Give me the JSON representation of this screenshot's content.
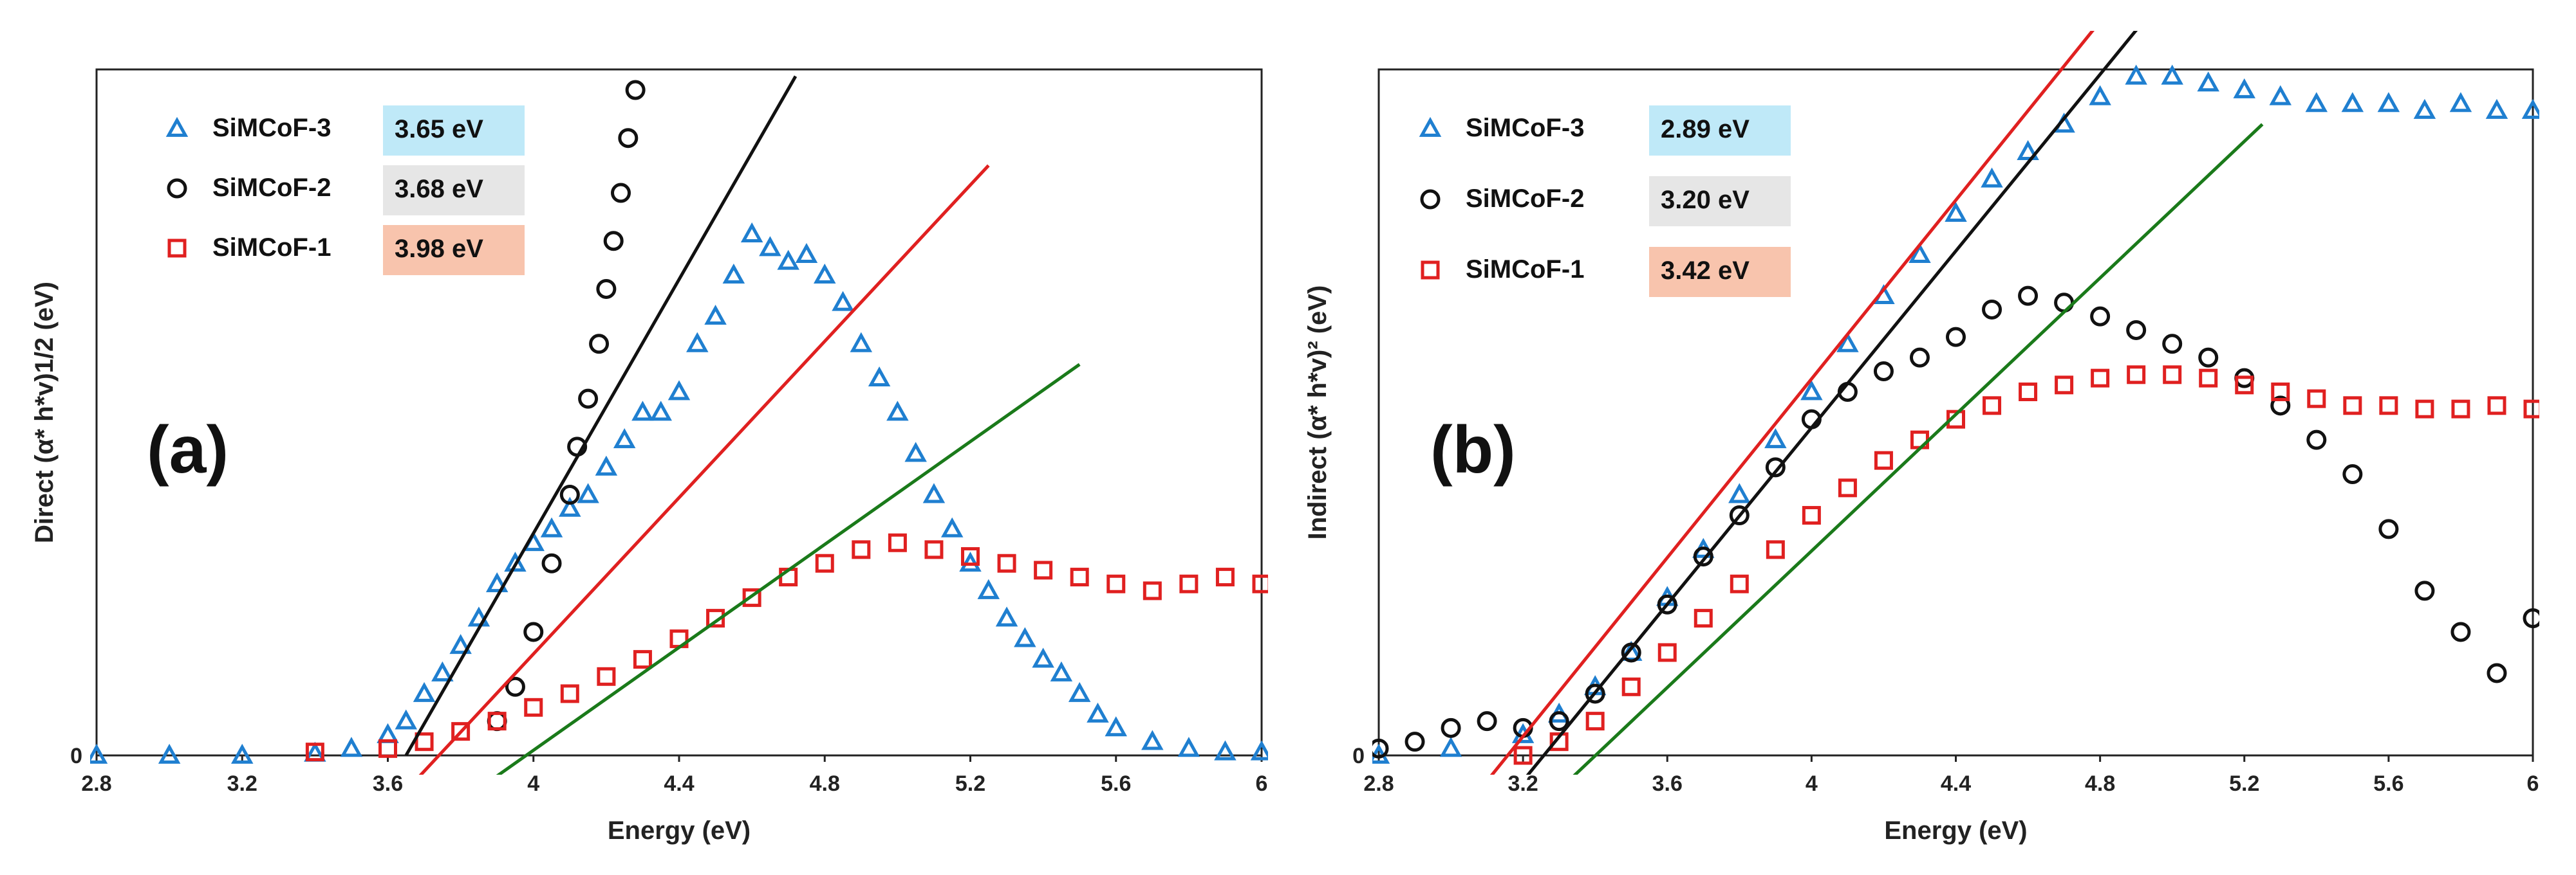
{
  "chart_data": [
    {
      "type": "scatter",
      "panel_label": "(a)",
      "xlabel": "Energy (eV)",
      "ylabel": "Direct (α* h*v)1/2  (eV)",
      "xlim": [
        2.8,
        6.0
      ],
      "ylim": [
        0,
        1.0
      ],
      "x_ticks": [
        "2.8",
        "3.2",
        "3.6",
        "4",
        "4.4",
        "4.8",
        "5.2",
        "5.6",
        "6"
      ],
      "y_tick_label": "0",
      "legend": [
        {
          "name": "SiMCoF-3",
          "marker": "triangle",
          "color": "#1f7fd0",
          "badge": "3.65 eV",
          "badge_color": "#bfe9f8"
        },
        {
          "name": "SiMCoF-2",
          "marker": "circle",
          "color": "#111111",
          "badge": "3.68 eV",
          "badge_color": "#e6e6e6"
        },
        {
          "name": "SiMCoF-1",
          "marker": "square",
          "color": "#e02020",
          "badge": "3.98 eV",
          "badge_color": "#f8c4ad"
        }
      ],
      "series": [
        {
          "name": "SiMCoF-3",
          "marker": "triangle",
          "color": "#1f7fd0",
          "points": [
            [
              2.8,
              0.0
            ],
            [
              3.0,
              0.0
            ],
            [
              3.2,
              0.0
            ],
            [
              3.4,
              0.003
            ],
            [
              3.5,
              0.01
            ],
            [
              3.6,
              0.03
            ],
            [
              3.65,
              0.05
            ],
            [
              3.7,
              0.09
            ],
            [
              3.75,
              0.12
            ],
            [
              3.8,
              0.16
            ],
            [
              3.85,
              0.2
            ],
            [
              3.9,
              0.25
            ],
            [
              3.95,
              0.28
            ],
            [
              4.0,
              0.31
            ],
            [
              4.05,
              0.33
            ],
            [
              4.1,
              0.36
            ],
            [
              4.15,
              0.38
            ],
            [
              4.2,
              0.42
            ],
            [
              4.25,
              0.46
            ],
            [
              4.3,
              0.5
            ],
            [
              4.35,
              0.5
            ],
            [
              4.4,
              0.53
            ],
            [
              4.45,
              0.6
            ],
            [
              4.5,
              0.64
            ],
            [
              4.55,
              0.7
            ],
            [
              4.6,
              0.76
            ],
            [
              4.65,
              0.74
            ],
            [
              4.7,
              0.72
            ],
            [
              4.75,
              0.73
            ],
            [
              4.8,
              0.7
            ],
            [
              4.85,
              0.66
            ],
            [
              4.9,
              0.6
            ],
            [
              4.95,
              0.55
            ],
            [
              5.0,
              0.5
            ],
            [
              5.05,
              0.44
            ],
            [
              5.1,
              0.38
            ],
            [
              5.15,
              0.33
            ],
            [
              5.2,
              0.28
            ],
            [
              5.25,
              0.24
            ],
            [
              5.3,
              0.2
            ],
            [
              5.35,
              0.17
            ],
            [
              5.4,
              0.14
            ],
            [
              5.45,
              0.12
            ],
            [
              5.5,
              0.09
            ],
            [
              5.55,
              0.06
            ],
            [
              5.6,
              0.04
            ],
            [
              5.7,
              0.02
            ],
            [
              5.8,
              0.01
            ],
            [
              5.9,
              0.005
            ],
            [
              6.0,
              0.005
            ]
          ]
        },
        {
          "name": "SiMCoF-2",
          "marker": "circle",
          "color": "#111111",
          "points": [
            [
              3.9,
              0.05
            ],
            [
              3.95,
              0.1
            ],
            [
              4.0,
              0.18
            ],
            [
              4.05,
              0.28
            ],
            [
              4.1,
              0.38
            ],
            [
              4.12,
              0.45
            ],
            [
              4.15,
              0.52
            ],
            [
              4.18,
              0.6
            ],
            [
              4.2,
              0.68
            ],
            [
              4.22,
              0.75
            ],
            [
              4.24,
              0.82
            ],
            [
              4.26,
              0.9
            ],
            [
              4.28,
              0.97
            ]
          ]
        },
        {
          "name": "SiMCoF-1",
          "marker": "square",
          "color": "#e02020",
          "points": [
            [
              3.4,
              0.005
            ],
            [
              3.6,
              0.01
            ],
            [
              3.7,
              0.02
            ],
            [
              3.8,
              0.035
            ],
            [
              3.9,
              0.05
            ],
            [
              4.0,
              0.07
            ],
            [
              4.1,
              0.09
            ],
            [
              4.2,
              0.115
            ],
            [
              4.3,
              0.14
            ],
            [
              4.4,
              0.17
            ],
            [
              4.5,
              0.2
            ],
            [
              4.6,
              0.23
            ],
            [
              4.7,
              0.26
            ],
            [
              4.8,
              0.28
            ],
            [
              4.9,
              0.3
            ],
            [
              5.0,
              0.31
            ],
            [
              5.1,
              0.3
            ],
            [
              5.2,
              0.29
            ],
            [
              5.3,
              0.28
            ],
            [
              5.4,
              0.27
            ],
            [
              5.5,
              0.26
            ],
            [
              5.6,
              0.25
            ],
            [
              5.7,
              0.24
            ],
            [
              5.8,
              0.25
            ],
            [
              5.9,
              0.26
            ],
            [
              6.0,
              0.25
            ]
          ]
        }
      ],
      "fit_lines": [
        {
          "color": "#111111",
          "from": [
            3.65,
            0.0
          ],
          "to": [
            4.72,
            0.99
          ]
        },
        {
          "color": "#e02020",
          "from": [
            3.6,
            -0.08
          ],
          "to": [
            5.25,
            0.86
          ]
        },
        {
          "color": "#1a7a1a",
          "from": [
            3.82,
            -0.06
          ],
          "to": [
            5.5,
            0.57
          ]
        }
      ]
    },
    {
      "type": "scatter",
      "panel_label": "(b)",
      "xlabel": "Energy (eV)",
      "ylabel": "Indirect (α* h*v)² (eV)",
      "xlim": [
        2.8,
        6.0
      ],
      "ylim": [
        0,
        1.0
      ],
      "x_ticks": [
        "2.8",
        "3.2",
        "3.6",
        "4",
        "4.4",
        "4.8",
        "5.2",
        "5.6",
        "6"
      ],
      "y_tick_label": "0",
      "legend": [
        {
          "name": "SiMCoF-3",
          "marker": "triangle",
          "color": "#1f7fd0",
          "badge": "2.89 eV",
          "badge_color": "#bfe9f8"
        },
        {
          "name": "SiMCoF-2",
          "marker": "circle",
          "color": "#111111",
          "badge": "3.20 eV",
          "badge_color": "#e6e6e6"
        },
        {
          "name": "SiMCoF-1",
          "marker": "square",
          "color": "#e02020",
          "badge": "3.42 eV",
          "badge_color": "#f8c4ad"
        }
      ],
      "series": [
        {
          "name": "SiMCoF-3",
          "marker": "triangle",
          "color": "#1f7fd0",
          "points": [
            [
              2.8,
              0.0
            ],
            [
              3.0,
              0.01
            ],
            [
              3.2,
              0.03
            ],
            [
              3.3,
              0.06
            ],
            [
              3.4,
              0.1
            ],
            [
              3.5,
              0.15
            ],
            [
              3.6,
              0.23
            ],
            [
              3.7,
              0.3
            ],
            [
              3.8,
              0.38
            ],
            [
              3.9,
              0.46
            ],
            [
              4.0,
              0.53
            ],
            [
              4.1,
              0.6
            ],
            [
              4.2,
              0.67
            ],
            [
              4.3,
              0.73
            ],
            [
              4.4,
              0.79
            ],
            [
              4.5,
              0.84
            ],
            [
              4.6,
              0.88
            ],
            [
              4.7,
              0.92
            ],
            [
              4.8,
              0.96
            ],
            [
              4.9,
              0.99
            ],
            [
              5.0,
              0.99
            ],
            [
              5.1,
              0.98
            ],
            [
              5.2,
              0.97
            ],
            [
              5.3,
              0.96
            ],
            [
              5.4,
              0.95
            ],
            [
              5.5,
              0.95
            ],
            [
              5.6,
              0.95
            ],
            [
              5.7,
              0.94
            ],
            [
              5.8,
              0.95
            ],
            [
              5.9,
              0.94
            ],
            [
              6.0,
              0.94
            ]
          ]
        },
        {
          "name": "SiMCoF-2",
          "marker": "circle",
          "color": "#111111",
          "points": [
            [
              2.8,
              0.01
            ],
            [
              2.9,
              0.02
            ],
            [
              3.0,
              0.04
            ],
            [
              3.1,
              0.05
            ],
            [
              3.2,
              0.04
            ],
            [
              3.3,
              0.05
            ],
            [
              3.4,
              0.09
            ],
            [
              3.5,
              0.15
            ],
            [
              3.6,
              0.22
            ],
            [
              3.7,
              0.29
            ],
            [
              3.8,
              0.35
            ],
            [
              3.9,
              0.42
            ],
            [
              4.0,
              0.49
            ],
            [
              4.1,
              0.53
            ],
            [
              4.2,
              0.56
            ],
            [
              4.3,
              0.58
            ],
            [
              4.4,
              0.61
            ],
            [
              4.5,
              0.65
            ],
            [
              4.6,
              0.67
            ],
            [
              4.7,
              0.66
            ],
            [
              4.8,
              0.64
            ],
            [
              4.9,
              0.62
            ],
            [
              5.0,
              0.6
            ],
            [
              5.1,
              0.58
            ],
            [
              5.2,
              0.55
            ],
            [
              5.3,
              0.51
            ],
            [
              5.4,
              0.46
            ],
            [
              5.5,
              0.41
            ],
            [
              5.6,
              0.33
            ],
            [
              5.7,
              0.24
            ],
            [
              5.8,
              0.18
            ],
            [
              5.9,
              0.12
            ],
            [
              6.0,
              0.2
            ]
          ]
        },
        {
          "name": "SiMCoF-1",
          "marker": "square",
          "color": "#e02020",
          "points": [
            [
              3.2,
              0.0
            ],
            [
              3.3,
              0.02
            ],
            [
              3.4,
              0.05
            ],
            [
              3.5,
              0.1
            ],
            [
              3.6,
              0.15
            ],
            [
              3.7,
              0.2
            ],
            [
              3.8,
              0.25
            ],
            [
              3.9,
              0.3
            ],
            [
              4.0,
              0.35
            ],
            [
              4.1,
              0.39
            ],
            [
              4.2,
              0.43
            ],
            [
              4.3,
              0.46
            ],
            [
              4.4,
              0.49
            ],
            [
              4.5,
              0.51
            ],
            [
              4.6,
              0.53
            ],
            [
              4.7,
              0.54
            ],
            [
              4.8,
              0.55
            ],
            [
              4.9,
              0.555
            ],
            [
              5.0,
              0.555
            ],
            [
              5.1,
              0.55
            ],
            [
              5.2,
              0.54
            ],
            [
              5.3,
              0.53
            ],
            [
              5.4,
              0.52
            ],
            [
              5.5,
              0.51
            ],
            [
              5.6,
              0.51
            ],
            [
              5.7,
              0.505
            ],
            [
              5.8,
              0.505
            ],
            [
              5.9,
              0.51
            ],
            [
              6.0,
              0.505
            ]
          ]
        }
      ],
      "fit_lines": [
        {
          "color": "#e02020",
          "from": [
            3.05,
            -0.07
          ],
          "to": [
            4.8,
            1.07
          ]
        },
        {
          "color": "#111111",
          "from": [
            3.18,
            -0.05
          ],
          "to": [
            4.92,
            1.07
          ]
        },
        {
          "color": "#1a7a1a",
          "from": [
            3.2,
            -0.1
          ],
          "to": [
            5.25,
            0.92
          ]
        }
      ]
    }
  ]
}
